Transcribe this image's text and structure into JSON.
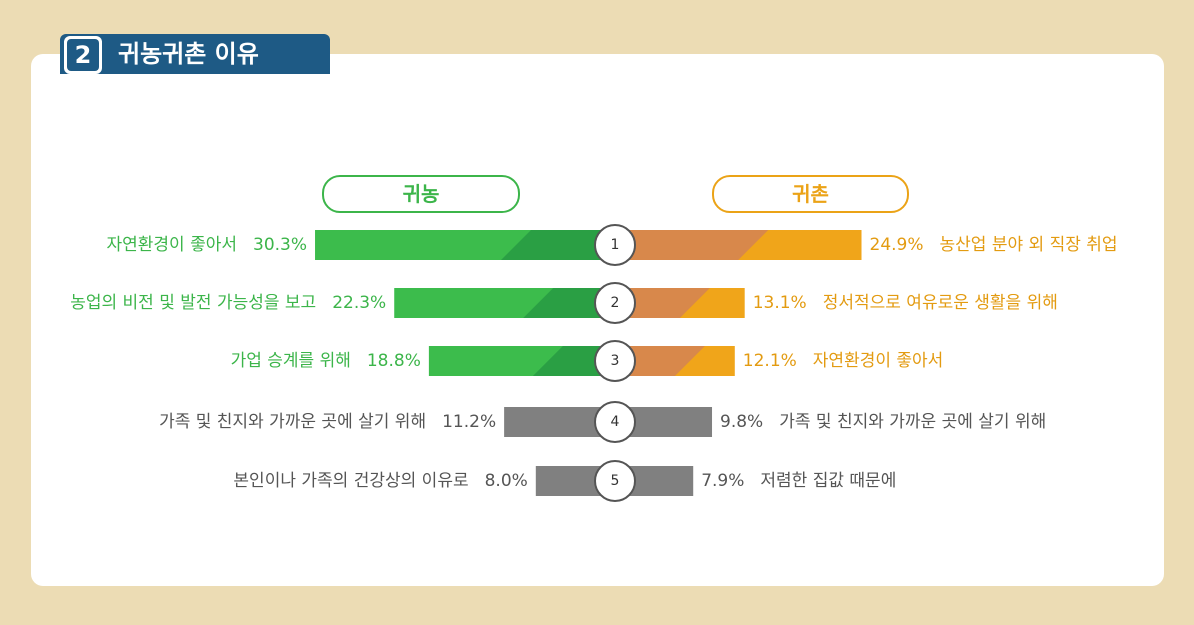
{
  "header": {
    "number": "2",
    "title": "귀농귀촌 이유"
  },
  "legend": {
    "left": "귀농",
    "right": "귀촌"
  },
  "colors": {
    "left_light": "#3cbc4c",
    "left_dark": "#2a9f44",
    "right_light": "#f0a51a",
    "right_dark": "#d8884b",
    "neutral": "#808080",
    "left_text": "#3cb54a",
    "right_text": "#e39b11",
    "neutral_text": "#555555"
  },
  "chart_data": {
    "type": "bar",
    "title": "귀농귀촌 이유",
    "series": [
      {
        "name": "귀농",
        "categories": [
          "자연환경이 좋아서",
          "농업의 비전 및 발전 가능성을 보고",
          "가업 승계를 위해",
          "가족 및 친지와 가까운 곳에 살기 위해",
          "본인이나 가족의 건강상의 이유로"
        ],
        "values": [
          30.3,
          22.3,
          18.8,
          11.2,
          8.0
        ],
        "value_labels": [
          "30.3%",
          "22.3%",
          "18.8%",
          "11.2%",
          "8.0%"
        ]
      },
      {
        "name": "귀촌",
        "categories": [
          "농산업 분야 외 직장 취업",
          "정서적으로 여유로운 생활을 위해",
          "자연환경이 좋아서",
          "가족 및 친지와 가까운 곳에 살기 위해",
          "저렴한 집값 때문에"
        ],
        "values": [
          24.9,
          13.1,
          12.1,
          9.8,
          7.9
        ],
        "value_labels": [
          "24.9%",
          "13.1%",
          "12.1%",
          "9.8%",
          "7.9%"
        ]
      }
    ],
    "ranks": [
      "1",
      "2",
      "3",
      "4",
      "5"
    ],
    "highlighted_ranks": 3
  }
}
